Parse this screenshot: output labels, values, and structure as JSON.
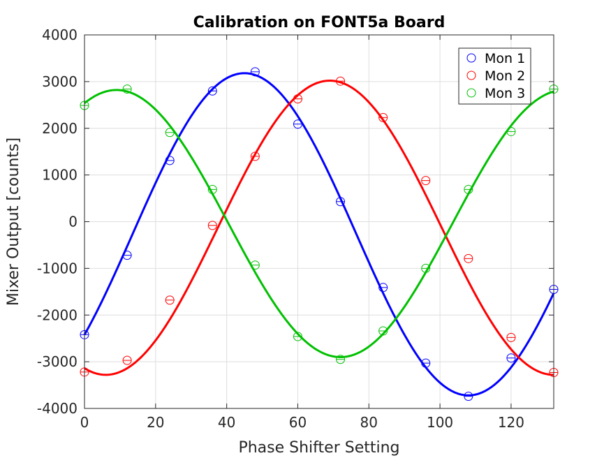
{
  "chart_data": {
    "type": "scatter",
    "title": "Calibration on FONT5a Board",
    "xlabel": "Phase Shifter Setting",
    "ylabel": "Mixer Output [counts]",
    "xlim": [
      0,
      132
    ],
    "ylim": [
      -4000,
      4000
    ],
    "xticks": [
      0,
      20,
      40,
      60,
      80,
      100,
      120
    ],
    "yticks": [
      -4000,
      -3000,
      -2000,
      -1000,
      0,
      1000,
      2000,
      3000,
      4000
    ],
    "xtick_labels": [
      "0",
      "20",
      "40",
      "60",
      "80",
      "100",
      "120"
    ],
    "ytick_labels": [
      "-4000",
      "-3000",
      "-2000",
      "-1000",
      "0",
      "1000",
      "2000",
      "3000",
      "4000"
    ],
    "grid": true,
    "legend_position": "top-right",
    "x": [
      0,
      12,
      24,
      36,
      48,
      60,
      72,
      84,
      96,
      108,
      120,
      132
    ],
    "series": [
      {
        "name": "Mon 1",
        "color": "#0000ff",
        "values": [
          -2420,
          -720,
          1310,
          2800,
          3210,
          2090,
          430,
          -1410,
          -3030,
          -3740,
          -2920,
          -1450
        ],
        "fit": {
          "amplitude": 3450,
          "offset": -270,
          "peak_x": 45,
          "period": 126
        }
      },
      {
        "name": "Mon 2",
        "color": "#ff0000",
        "values": [
          -3220,
          -2970,
          -1680,
          -80,
          1400,
          2630,
          3010,
          2230,
          880,
          -790,
          -2480,
          -3230
        ],
        "fit": {
          "amplitude": 3150,
          "offset": -130,
          "peak_x": 69,
          "period": 126
        }
      },
      {
        "name": "Mon 3",
        "color": "#00c000",
        "values": [
          2490,
          2840,
          1910,
          690,
          -930,
          -2460,
          -2950,
          -2340,
          -1000,
          690,
          1930,
          2840
        ],
        "fit": {
          "amplitude": 2860,
          "offset": -40,
          "peak_x": 9,
          "period": 126
        }
      }
    ]
  }
}
